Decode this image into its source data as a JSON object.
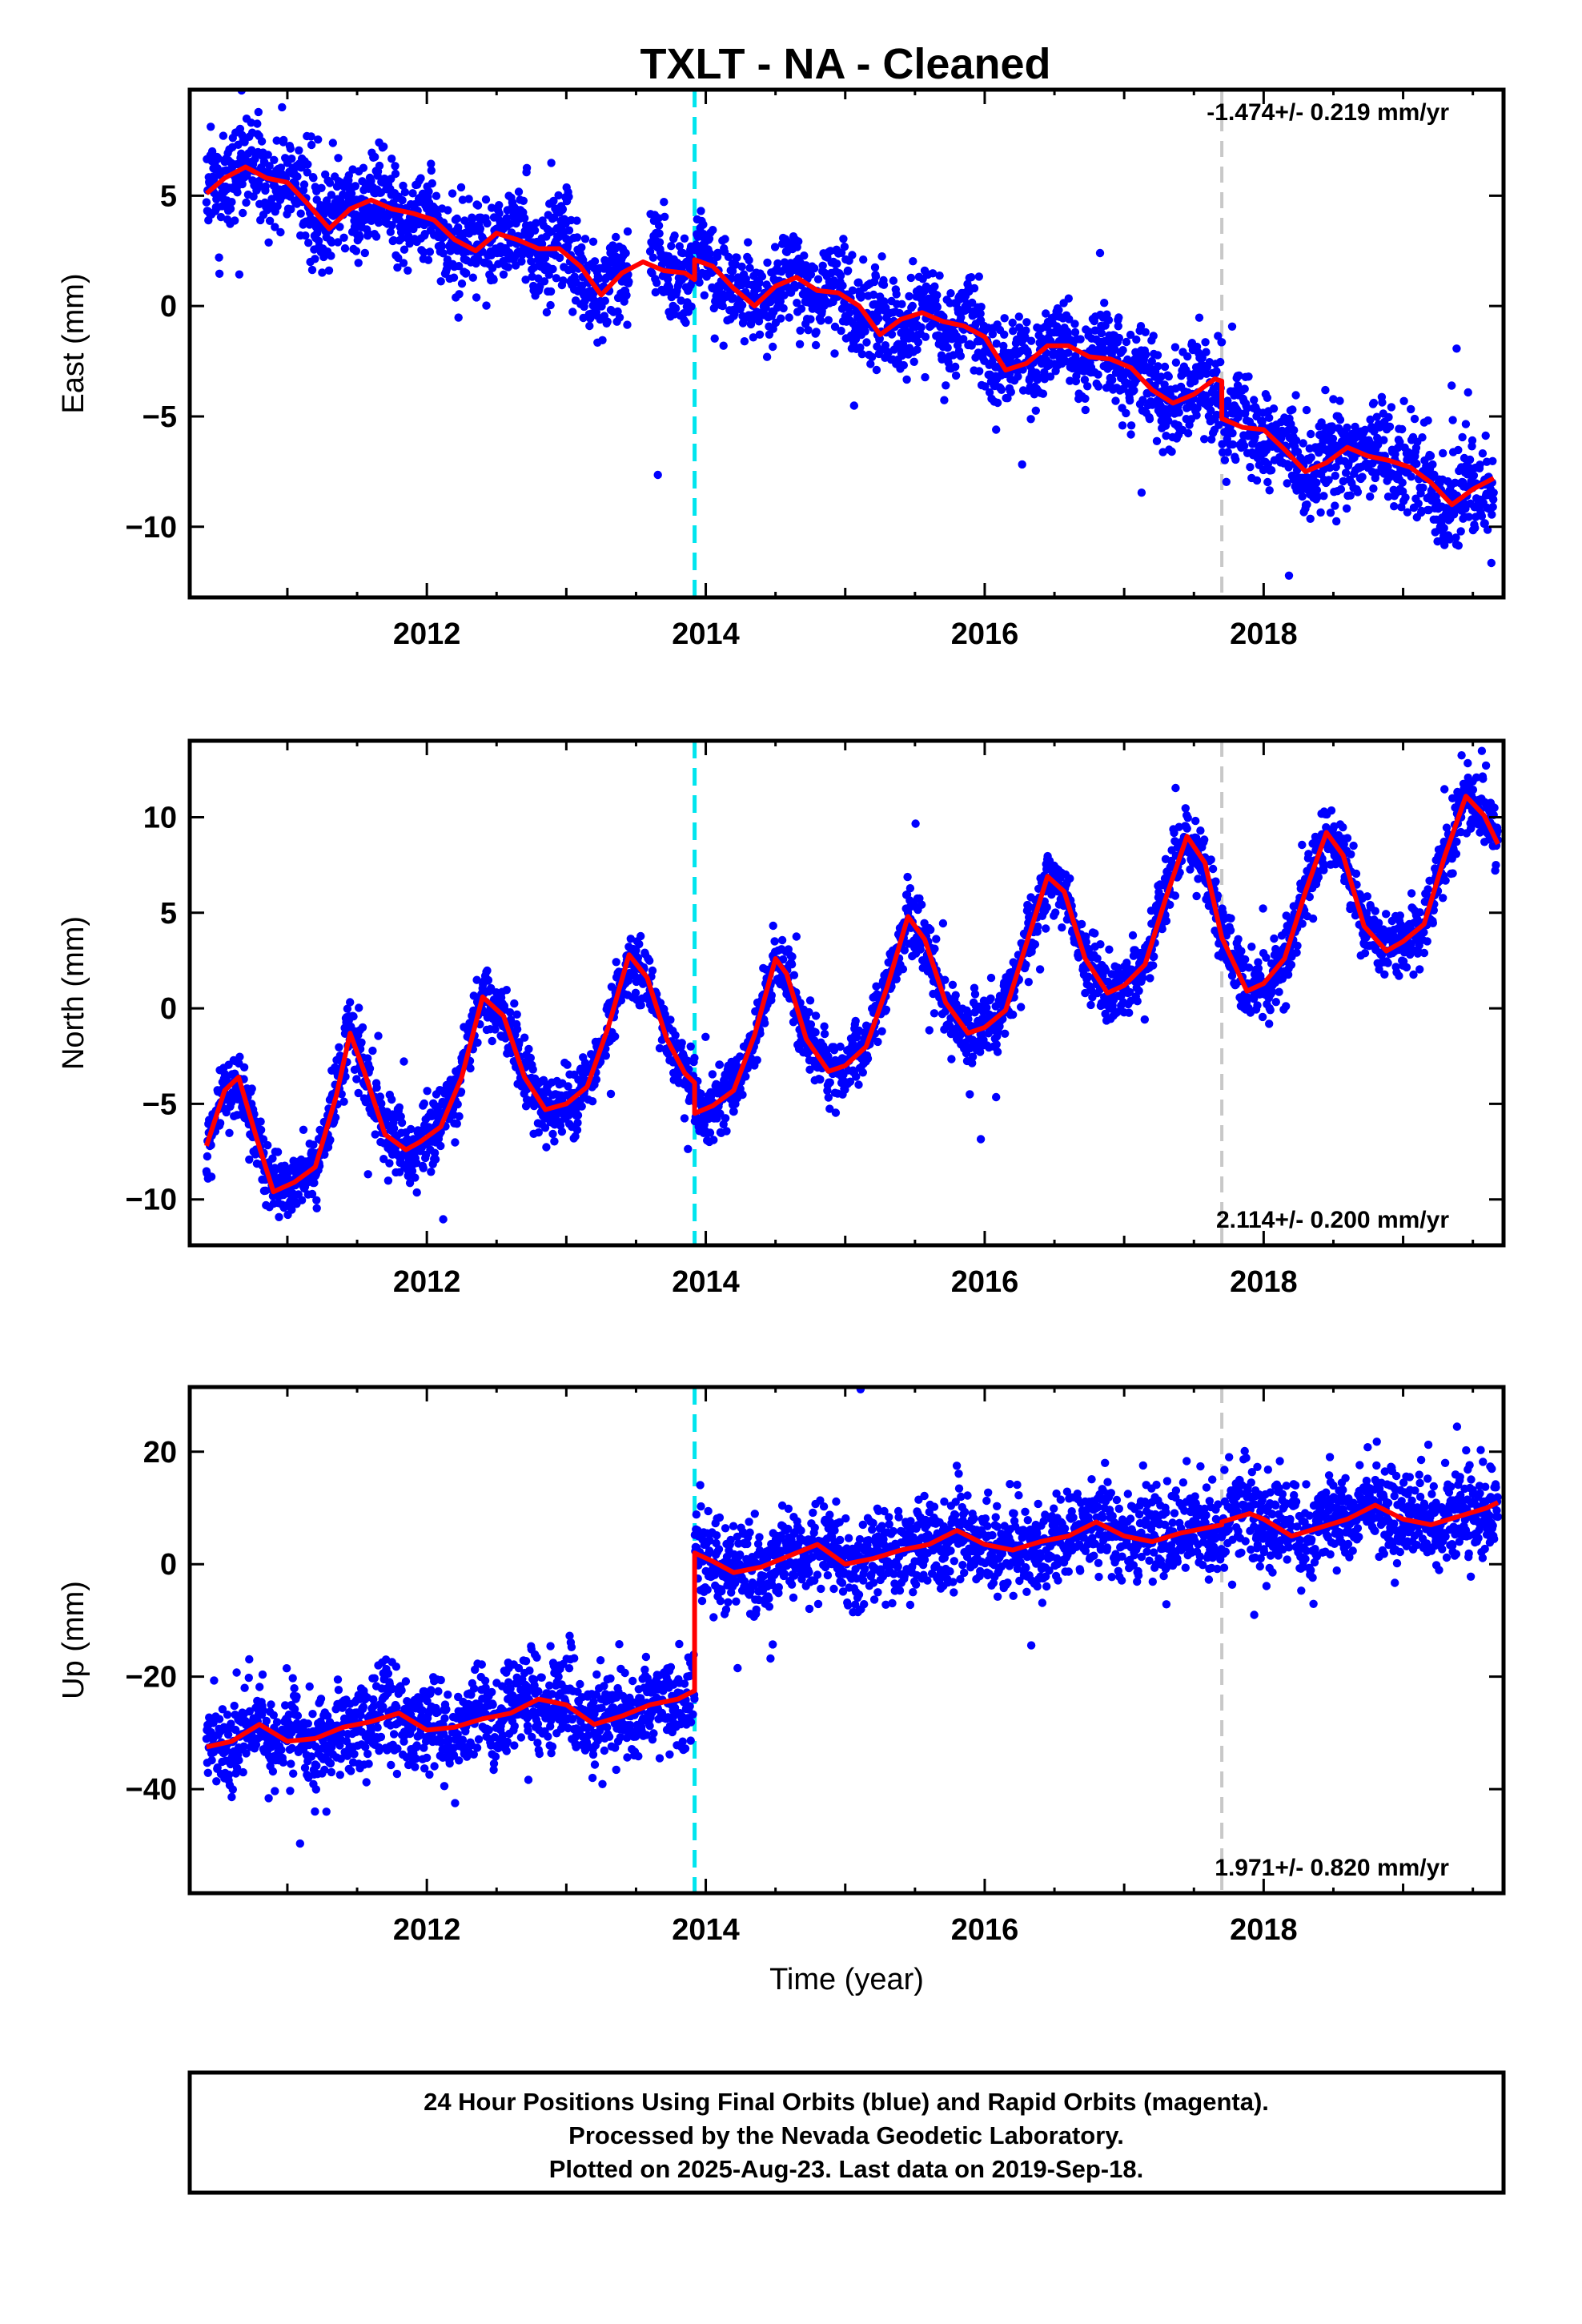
{
  "title": "TXLT  - NA - Cleaned",
  "footer": {
    "line1": "24 Hour Positions Using Final Orbits (blue) and Rapid Orbits (magenta).",
    "line2": "Processed by the Nevada Geodetic Laboratory.",
    "line3": "Plotted on 2025-Aug-23. Last data on 2019-Sep-18."
  },
  "colors": {
    "points": "#0000ff",
    "model": "#ff0000",
    "equipment_change": "#00e5ee",
    "other_event": "#c8c8c8"
  },
  "chart_data": [
    {
      "type": "scatter",
      "ylabel": "East (mm)",
      "xlabel": "",
      "xlim": [
        2010.3,
        2019.72
      ],
      "ylim": [
        -13.2,
        9.8
      ],
      "xticks": [
        "2012",
        "2014",
        "2016",
        "2018"
      ],
      "yticks": [
        "5",
        "0",
        "−5",
        "−10"
      ],
      "ytick_values": [
        5,
        0,
        -5,
        -10
      ],
      "rate_label": "-1.474+/- 0.219 mm/yr",
      "rate_position": "top-right",
      "events": {
        "equipment_change": 2013.92,
        "other_event": 2017.7
      },
      "model": {
        "offset_at": 2013.92,
        "x": [
          2010.42,
          2010.55,
          2010.7,
          2010.85,
          2011.0,
          2011.15,
          2011.3,
          2011.45,
          2011.6,
          2011.75,
          2011.9,
          2012.05,
          2012.2,
          2012.35,
          2012.5,
          2012.65,
          2012.8,
          2012.95,
          2013.1,
          2013.25,
          2013.4,
          2013.55,
          2013.7,
          2013.85,
          2013.92,
          2013.92,
          2014.05,
          2014.2,
          2014.35,
          2014.5,
          2014.65,
          2014.8,
          2014.95,
          2015.1,
          2015.25,
          2015.4,
          2015.55,
          2015.7,
          2015.85,
          2016.0,
          2016.15,
          2016.3,
          2016.45,
          2016.6,
          2016.75,
          2016.9,
          2017.05,
          2017.2,
          2017.35,
          2017.5,
          2017.65,
          2017.7,
          2017.7,
          2017.85,
          2018.0,
          2018.15,
          2018.3,
          2018.45,
          2018.6,
          2018.75,
          2018.9,
          2019.05,
          2019.2,
          2019.35,
          2019.5,
          2019.65
        ],
        "y": [
          5.1,
          5.8,
          6.3,
          5.8,
          5.6,
          4.6,
          3.5,
          4.4,
          4.8,
          4.4,
          4.2,
          3.9,
          3.0,
          2.5,
          3.3,
          3.0,
          2.6,
          2.6,
          1.8,
          0.5,
          1.5,
          2.0,
          1.6,
          1.5,
          1.2,
          2.1,
          1.8,
          0.8,
          0.0,
          0.9,
          1.3,
          0.7,
          0.6,
          0.0,
          -1.3,
          -0.6,
          -0.3,
          -0.7,
          -0.9,
          -1.4,
          -2.9,
          -2.6,
          -1.8,
          -1.8,
          -2.3,
          -2.4,
          -2.8,
          -3.8,
          -4.4,
          -4.0,
          -3.3,
          -3.4,
          -5.1,
          -5.5,
          -5.6,
          -6.5,
          -7.5,
          -7.1,
          -6.4,
          -6.8,
          -7.0,
          -7.3,
          -8.0,
          -9.0,
          -8.3,
          -7.8
        ]
      },
      "sim": {
        "seasonal_amp": 0.55,
        "noise": 1.05,
        "outlier_rate": 0.02,
        "outlier_scale": 2.6,
        "gap_start": 2013.45,
        "gap_end": 2013.6,
        "seed": 11
      }
    },
    {
      "type": "scatter",
      "ylabel": "North (mm)",
      "xlabel": "",
      "xlim": [
        2010.3,
        2019.72
      ],
      "ylim": [
        -12.4,
        14.0
      ],
      "xticks": [
        "2012",
        "2014",
        "2016",
        "2018"
      ],
      "yticks": [
        "10",
        "5",
        "0",
        "−5",
        "−10"
      ],
      "ytick_values": [
        10,
        5,
        0,
        -5,
        -10
      ],
      "rate_label": "2.114+/- 0.200 mm/yr",
      "rate_position": "bottom-right",
      "events": {
        "equipment_change": 2013.92,
        "other_event": 2017.7
      },
      "model": {
        "offset_at": 2013.92,
        "x": [
          2010.42,
          2010.55,
          2010.65,
          2010.78,
          2010.9,
          2011.05,
          2011.2,
          2011.35,
          2011.45,
          2011.55,
          2011.7,
          2011.85,
          2011.95,
          2012.1,
          2012.25,
          2012.4,
          2012.55,
          2012.7,
          2012.85,
          2013.0,
          2013.15,
          2013.3,
          2013.45,
          2013.58,
          2013.72,
          2013.85,
          2013.92,
          2013.92,
          2014.05,
          2014.2,
          2014.35,
          2014.5,
          2014.58,
          2014.72,
          2014.88,
          2015.0,
          2015.15,
          2015.3,
          2015.45,
          2015.57,
          2015.72,
          2015.88,
          2016.0,
          2016.15,
          2016.3,
          2016.45,
          2016.57,
          2016.72,
          2016.88,
          2017.0,
          2017.15,
          2017.3,
          2017.45,
          2017.58,
          2017.7,
          2017.7,
          2017.88,
          2018.0,
          2018.15,
          2018.3,
          2018.45,
          2018.57,
          2018.72,
          2018.88,
          2019.0,
          2019.15,
          2019.3,
          2019.45,
          2019.58,
          2019.68
        ],
        "y": [
          -7.2,
          -4.3,
          -3.6,
          -6.8,
          -9.6,
          -9.1,
          -8.3,
          -4.6,
          -1.3,
          -3.3,
          -6.6,
          -7.4,
          -7.0,
          -6.2,
          -3.6,
          0.6,
          -0.4,
          -3.6,
          -5.3,
          -5.0,
          -4.1,
          -1.0,
          2.8,
          1.6,
          -1.6,
          -3.4,
          -3.9,
          -5.5,
          -5.1,
          -4.3,
          -1.4,
          2.6,
          1.8,
          -1.6,
          -3.3,
          -3.0,
          -2.0,
          1.1,
          4.8,
          3.6,
          0.3,
          -1.3,
          -1.0,
          -0.1,
          3.4,
          6.9,
          6.1,
          2.6,
          0.8,
          1.2,
          2.3,
          5.8,
          9.0,
          7.6,
          3.7,
          3.7,
          0.9,
          1.3,
          2.6,
          6.1,
          9.2,
          8.0,
          4.3,
          3.0,
          3.5,
          4.4,
          8.0,
          11.1,
          10.1,
          8.6
        ]
      },
      "sim": {
        "seasonal_amp": 0.0,
        "noise": 0.85,
        "outlier_rate": 0.02,
        "outlier_scale": 2.4,
        "gap_start": 2013.92,
        "gap_end": 2013.92,
        "seed": 23
      }
    },
    {
      "type": "scatter",
      "ylabel": "Up (mm)",
      "xlabel": "Time (year)",
      "xlim": [
        2010.3,
        2019.72
      ],
      "ylim": [
        -58.5,
        31.5
      ],
      "xticks": [
        "2012",
        "2014",
        "2016",
        "2018"
      ],
      "yticks": [
        "20",
        "0",
        "−20",
        "−40"
      ],
      "ytick_values": [
        20,
        0,
        -20,
        -40
      ],
      "rate_label": "1.971+/- 0.820 mm/yr",
      "rate_position": "bottom-right",
      "events": {
        "equipment_change": 2013.92,
        "other_event": 2017.7
      },
      "model": {
        "offset_at": 2013.92,
        "x": [
          2010.42,
          2010.6,
          2010.8,
          2011.0,
          2011.2,
          2011.4,
          2011.6,
          2011.8,
          2012.0,
          2012.2,
          2012.4,
          2012.6,
          2012.8,
          2013.0,
          2013.2,
          2013.4,
          2013.6,
          2013.8,
          2013.92,
          2013.92,
          2014.05,
          2014.2,
          2014.4,
          2014.6,
          2014.8,
          2015.0,
          2015.2,
          2015.4,
          2015.6,
          2015.8,
          2016.0,
          2016.2,
          2016.4,
          2016.6,
          2016.8,
          2017.0,
          2017.2,
          2017.4,
          2017.6,
          2017.7,
          2017.7,
          2017.9,
          2018.0,
          2018.2,
          2018.4,
          2018.6,
          2018.8,
          2019.0,
          2019.2,
          2019.4,
          2019.6,
          2019.68
        ],
        "y": [
          -32.5,
          -31.5,
          -28.5,
          -31.5,
          -31.0,
          -29.0,
          -28.0,
          -26.5,
          -29.5,
          -29.0,
          -27.5,
          -26.5,
          -24.0,
          -25.0,
          -28.5,
          -27.0,
          -25.0,
          -24.0,
          -22.5,
          2.0,
          0.5,
          -1.5,
          -0.5,
          1.5,
          3.5,
          0.0,
          1.0,
          2.5,
          3.5,
          6.0,
          3.5,
          2.5,
          4.0,
          5.0,
          7.5,
          5.0,
          4.0,
          5.5,
          6.5,
          7.0,
          7.5,
          9.0,
          8.0,
          5.0,
          6.5,
          8.0,
          10.5,
          8.0,
          7.0,
          8.5,
          10.0,
          11.0
        ]
      },
      "sim": {
        "seasonal_amp": 1.2,
        "noise": 4.1,
        "outlier_rate": 0.012,
        "outlier_scale": 3.0,
        "gap_start": 2013.92,
        "gap_end": 2013.92,
        "seed": 37
      }
    }
  ]
}
